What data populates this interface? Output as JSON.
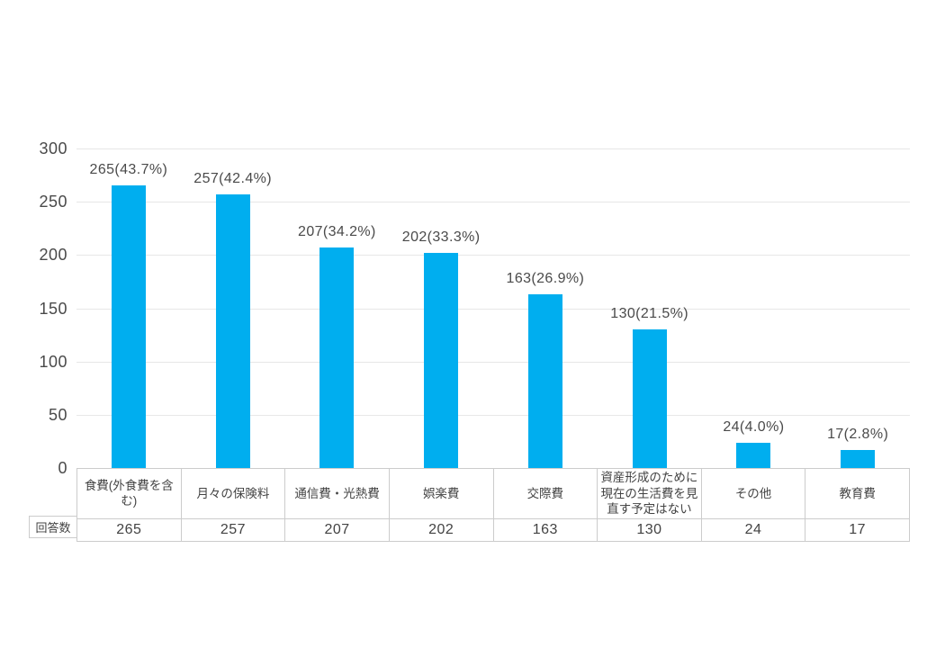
{
  "chart_data": {
    "type": "bar",
    "title": "",
    "categories": [
      "食費(外食費を含む)",
      "月々の保険料",
      "通信費・光熱費",
      "娯楽費",
      "交際費",
      "資産形成のために現在の生活費を見直す予定はない",
      "その他",
      "教育費"
    ],
    "values": [
      265,
      257,
      207,
      202,
      163,
      130,
      24,
      17
    ],
    "value_labels": [
      "265(43.7%)",
      "257(42.4%)",
      "207(34.2%)",
      "202(33.3%)",
      "163(26.9%)",
      "130(21.5%)",
      "24(4.0%)",
      "17(2.8%)"
    ],
    "y_ticks": [
      300,
      250,
      200,
      150,
      100,
      50,
      0
    ],
    "ylim": [
      0,
      300
    ],
    "grid": "horizontal",
    "legend": "none"
  },
  "table": {
    "row_label": "回答数",
    "values": [
      "265",
      "257",
      "207",
      "202",
      "163",
      "130",
      "24",
      "17"
    ]
  },
  "colors": {
    "bar": "#00aeef",
    "gridline": "#e7e7e7",
    "table_border": "#cccccc",
    "text": "#4a4a4a"
  }
}
